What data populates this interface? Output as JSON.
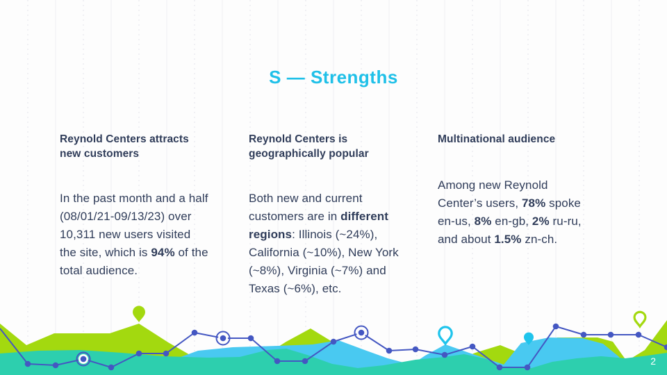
{
  "slide": {
    "title": "S — Strengths",
    "page_number": "2"
  },
  "columns": [
    {
      "header": "Reynold Centers attracts new customers",
      "body": [
        {
          "text": "In the past month and a half (08/01/21-09/13/23) over 10,311 new users visited the site, which is ",
          "bold": false
        },
        {
          "text": "94%",
          "bold": true
        },
        {
          "text": " of the total audience.",
          "bold": false
        }
      ]
    },
    {
      "header": "Reynold Centers is geographically popular",
      "body": [
        {
          "text": "Both new and current customers are in ",
          "bold": false
        },
        {
          "text": "different regions",
          "bold": true
        },
        {
          "text": ": Illinois (~24%), California (~10%), New York (~8%), Virginia (~7%) and Texas (~6%), etc.",
          "bold": false
        }
      ]
    },
    {
      "header": "Multinational audience",
      "body": [
        {
          "text": "Among new Reynold Center’s users, ",
          "bold": false
        },
        {
          "text": "78%",
          "bold": true
        },
        {
          "text": " spoke en-us, ",
          "bold": false
        },
        {
          "text": "8%",
          "bold": true
        },
        {
          "text": " en-gb, ",
          "bold": false
        },
        {
          "text": "2%",
          "bold": true
        },
        {
          "text": " ru-ru, and about ",
          "bold": false
        },
        {
          "text": "1.5%",
          "bold": true
        },
        {
          "text": " zn-ch.",
          "bold": false
        }
      ]
    }
  ],
  "icons": {
    "pins": [
      "map-pin-solid-green",
      "map-pin-outline-cyan",
      "map-pin-solid-cyan",
      "map-pin-outline-lime"
    ]
  },
  "colors": {
    "title": "#1fc0e8",
    "text": "#2f3c59",
    "lime": "#a3d90f",
    "teal": "#2dcfae",
    "cyan": "#49c9f1",
    "pincyan": "#1fc4ec",
    "line": "#4457c2",
    "pagenum": "#ffffff"
  }
}
